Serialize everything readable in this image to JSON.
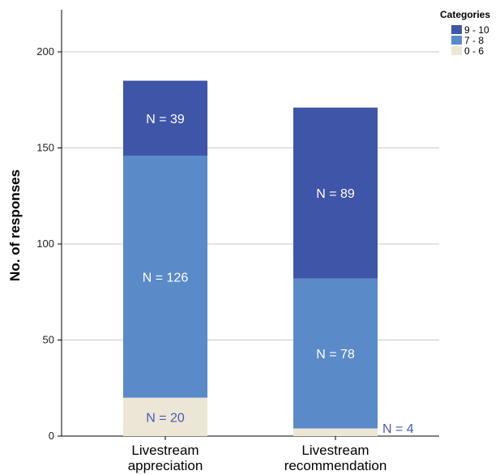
{
  "chart_data": {
    "type": "bar",
    "stacked": true,
    "ylabel": "No. of responses",
    "xlabel": "",
    "ylim": [
      0,
      220
    ],
    "yticks": [
      0,
      50,
      100,
      150,
      200
    ],
    "grid": true,
    "legend_position": "top-right",
    "legend_title": "Categories",
    "categories": [
      [
        "Livestream",
        "appreciation"
      ],
      [
        "Livestream",
        "recommendation"
      ]
    ],
    "series": [
      {
        "name": "0 - 6",
        "values": [
          20,
          4
        ],
        "labels": [
          "N = 20",
          "N = 4"
        ],
        "color": "#ece6d6",
        "label_color": "#4a5bb0"
      },
      {
        "name": "7 - 8",
        "values": [
          126,
          78
        ],
        "labels": [
          "N = 126",
          "N = 78"
        ],
        "color": "#5b8ac8",
        "label_color": "#ffffff"
      },
      {
        "name": "9 - 10",
        "values": [
          39,
          89
        ],
        "labels": [
          "N = 39",
          "N = 89"
        ],
        "color": "#3f55a8",
        "label_color": "#ffffff"
      }
    ]
  }
}
